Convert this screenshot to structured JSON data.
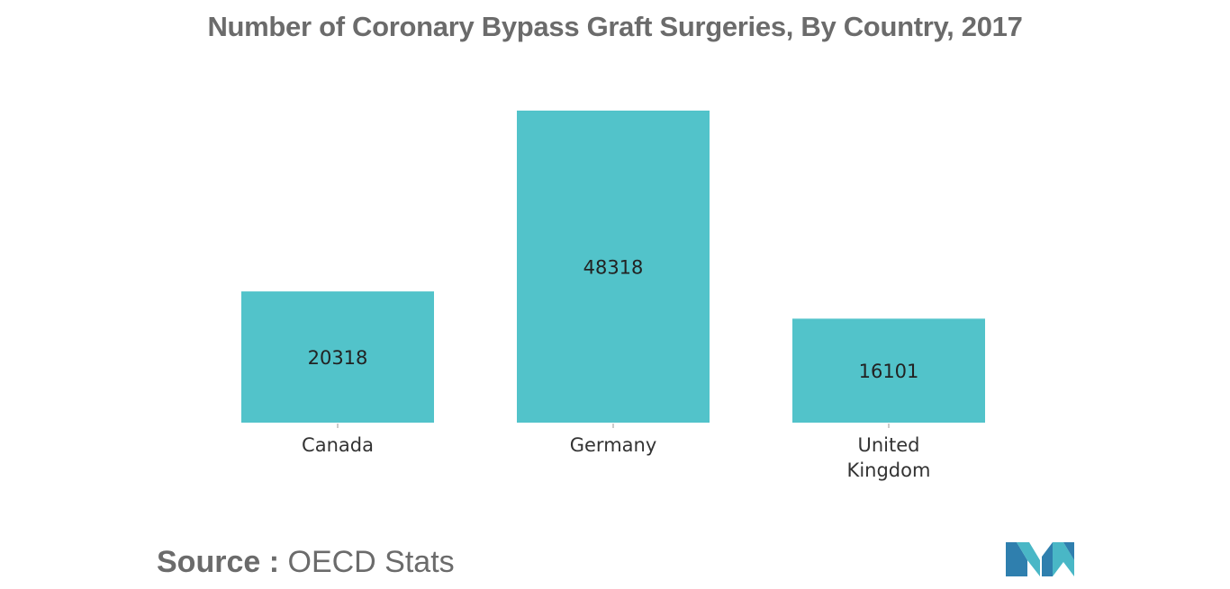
{
  "chart_data": {
    "type": "bar",
    "title": "Number of Coronary Bypass Graft Surgeries, By Country, 2017",
    "categories": [
      [
        "Canada"
      ],
      [
        "Germany"
      ],
      [
        "United",
        "Kingdom"
      ]
    ],
    "values": [
      20318,
      48318,
      16101
    ],
    "value_labels": [
      "20318",
      "48318",
      "16101"
    ],
    "ylim": [
      0,
      48318
    ],
    "xlabel": "",
    "ylabel": "",
    "grid": false,
    "legend": "none",
    "bar_color": "#52c3ca"
  },
  "source": {
    "label": "Source :",
    "text": "OECD Stats"
  },
  "logo": {
    "icon": "brand-logo-icon",
    "colors": [
      "#2f7fae",
      "#49b7c6"
    ]
  }
}
